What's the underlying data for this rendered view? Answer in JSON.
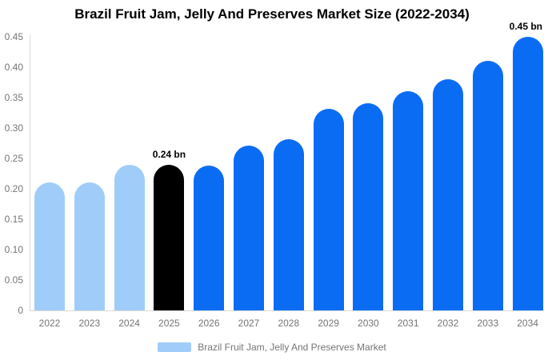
{
  "chart_data": {
    "type": "bar",
    "title": "Brazil Fruit Jam, Jelly And Preserves Market Size (2022-2034)",
    "unit": "bn",
    "categories": [
      "2022",
      "2023",
      "2024",
      "2025",
      "2026",
      "2027",
      "2028",
      "2029",
      "2030",
      "2031",
      "2032",
      "2033",
      "2034"
    ],
    "values": [
      0.21,
      0.21,
      0.239,
      0.24,
      0.238,
      0.271,
      0.282,
      0.331,
      0.341,
      0.361,
      0.38,
      0.411,
      0.45
    ],
    "bar_colors": [
      "#a0ccfa",
      "#a0ccfa",
      "#a0ccfa",
      "#000000",
      "#0a6cf3",
      "#0a6cf3",
      "#0a6cf3",
      "#0a6cf3",
      "#0a6cf3",
      "#0a6cf3",
      "#0a6cf3",
      "#0a6cf3",
      "#0a6cf3"
    ],
    "annotations": [
      {
        "category": "2025",
        "text": "0.24 bn"
      },
      {
        "category": "2034",
        "text": "0.45 bn"
      }
    ],
    "ylim": [
      0,
      0.45
    ],
    "yticks": [
      "0",
      "0.05",
      "0.10",
      "0.15",
      "0.20",
      "0.25",
      "0.30",
      "0.35",
      "0.40",
      "0.45"
    ],
    "xlabel": "",
    "ylabel": "",
    "grid": "off",
    "legend": {
      "label": "Brazil Fruit Jam, Jelly And Preserves Market",
      "swatch_color": "#a0ccfa",
      "position": "bottom"
    },
    "colors": {
      "historical_bar": "#a0ccfa",
      "base_year_bar": "#000000",
      "forecast_bar": "#0a6cf3",
      "axis_line": "#d9d9d9",
      "tick_text": "#757575",
      "title_text": "#000000",
      "background": "#ffffff"
    }
  }
}
